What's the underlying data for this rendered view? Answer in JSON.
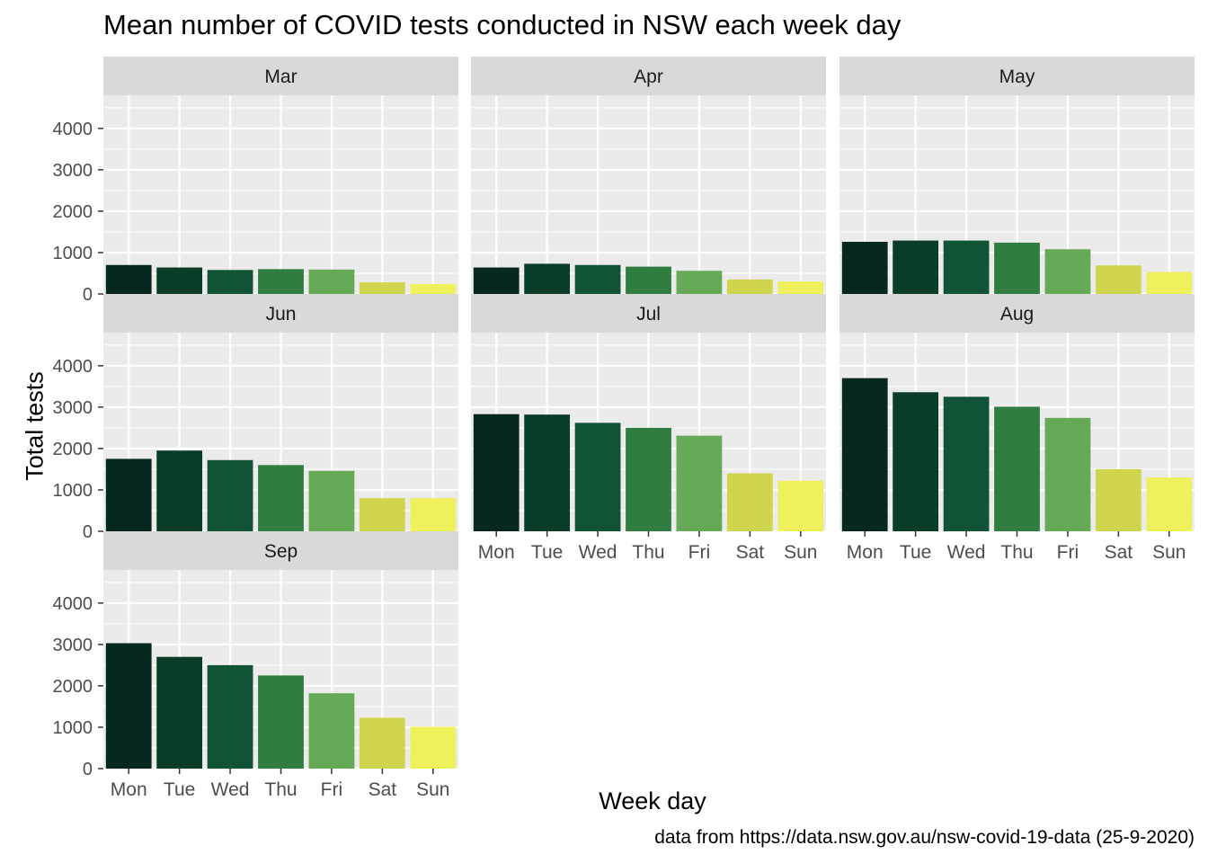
{
  "chart_data": {
    "type": "bar",
    "title": "Mean number of COVID tests conducted in NSW each week day",
    "xlabel": "Week day",
    "ylabel": "Total tests",
    "caption": "data from https://data.nsw.gov.au/nsw-covid-19-data (25-9-2020)",
    "categories": [
      "Mon",
      "Tue",
      "Wed",
      "Thu",
      "Fri",
      "Sat",
      "Sun"
    ],
    "ylim": [
      0,
      4800
    ],
    "yticks": [
      0,
      1000,
      2000,
      3000,
      4000
    ],
    "grid": true,
    "legend": "none",
    "colors": [
      "#062820",
      "#0a3d28",
      "#115435",
      "#2f7d40",
      "#66aa58",
      "#cfd64e",
      "#eef05c"
    ],
    "panels": [
      {
        "name": "Mar",
        "values": [
          700,
          640,
          580,
          600,
          590,
          280,
          240
        ]
      },
      {
        "name": "Apr",
        "values": [
          640,
          730,
          700,
          660,
          560,
          350,
          300
        ]
      },
      {
        "name": "May",
        "values": [
          1260,
          1290,
          1290,
          1240,
          1080,
          690,
          530
        ]
      },
      {
        "name": "Jun",
        "values": [
          1750,
          1950,
          1720,
          1600,
          1460,
          800,
          800
        ]
      },
      {
        "name": "Jul",
        "values": [
          2830,
          2820,
          2620,
          2500,
          2310,
          1400,
          1220
        ]
      },
      {
        "name": "Aug",
        "values": [
          3700,
          3360,
          3250,
          3010,
          2740,
          1500,
          1300
        ]
      },
      {
        "name": "Sep",
        "values": [
          3030,
          2700,
          2500,
          2250,
          1820,
          1230,
          1010
        ]
      }
    ]
  }
}
